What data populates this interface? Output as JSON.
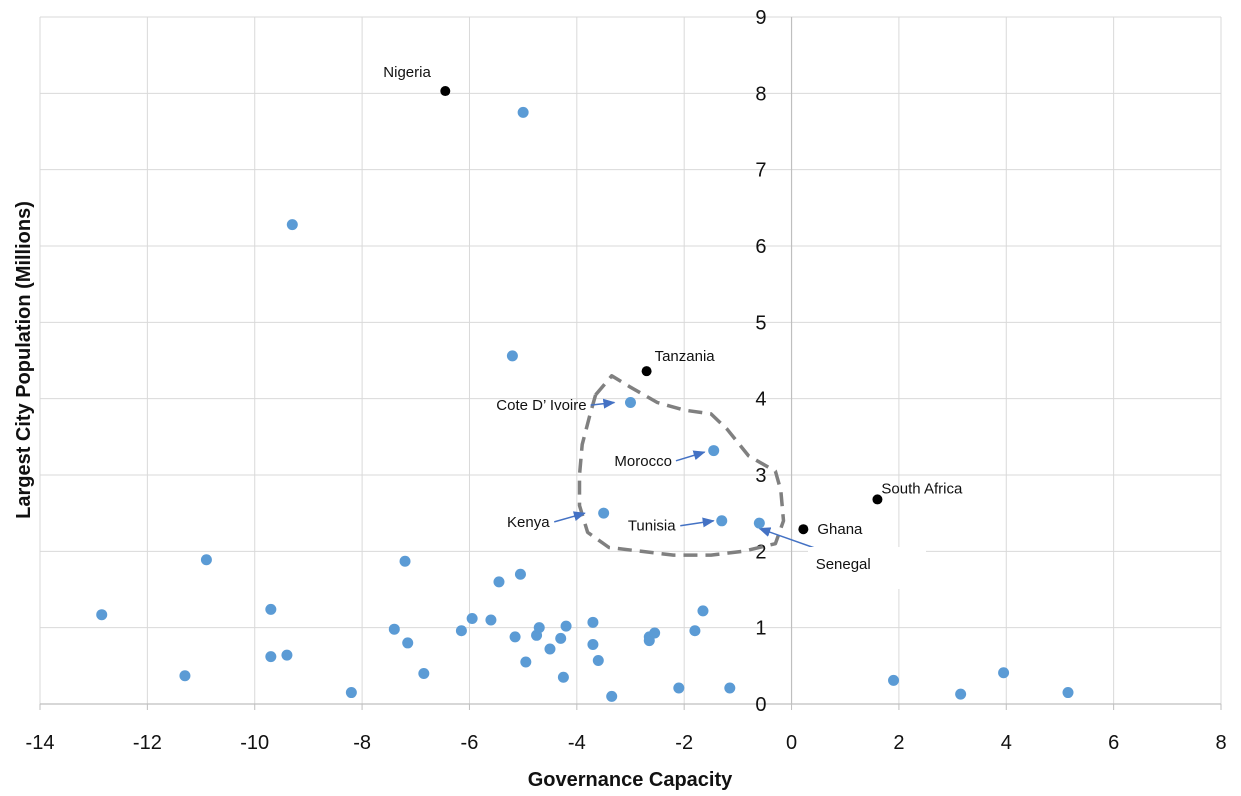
{
  "chart_data": {
    "type": "scatter",
    "title": "",
    "xlabel": "Governance Capacity",
    "ylabel": "Largest City Population (Millions)",
    "xlim": [
      -14,
      8
    ],
    "ylim": [
      0,
      9
    ],
    "x_ticks": [
      -14,
      -12,
      -10,
      -8,
      -6,
      -4,
      -2,
      0,
      2,
      4,
      6,
      8
    ],
    "y_ticks": [
      0,
      1,
      2,
      3,
      4,
      5,
      6,
      7,
      8,
      9
    ],
    "grid": true,
    "colors": {
      "points": "#5b9bd5",
      "highlight": "#000000",
      "arrow": "#4472c4",
      "cluster": "#808080"
    },
    "series": [
      {
        "points": [
          [
            -12.85,
            1.17
          ],
          [
            -11.3,
            0.37
          ],
          [
            -10.9,
            1.89
          ],
          [
            -9.7,
            1.24
          ],
          [
            -9.7,
            0.62
          ],
          [
            -9.4,
            0.64
          ],
          [
            -9.3,
            6.28
          ],
          [
            -8.2,
            0.15
          ],
          [
            -7.4,
            0.98
          ],
          [
            -7.2,
            1.87
          ],
          [
            -7.15,
            0.8
          ],
          [
            -6.85,
            0.4
          ],
          [
            -6.15,
            0.96
          ],
          [
            -5.95,
            1.12
          ],
          [
            -5.6,
            1.1
          ],
          [
            -5.45,
            1.6
          ],
          [
            -5.2,
            4.56
          ],
          [
            -5.15,
            0.88
          ],
          [
            -5.05,
            1.7
          ],
          [
            -5.0,
            7.75
          ],
          [
            -4.95,
            0.55
          ],
          [
            -4.75,
            0.9
          ],
          [
            -4.7,
            1.0
          ],
          [
            -4.5,
            0.72
          ],
          [
            -4.3,
            0.86
          ],
          [
            -4.25,
            0.35
          ],
          [
            -4.2,
            1.02
          ],
          [
            -3.7,
            1.07
          ],
          [
            -3.7,
            0.78
          ],
          [
            -3.6,
            0.57
          ],
          [
            -3.5,
            2.5
          ],
          [
            -3.35,
            0.1
          ],
          [
            -3.0,
            3.95
          ],
          [
            -2.65,
            0.88
          ],
          [
            -2.65,
            0.83
          ],
          [
            -2.55,
            0.93
          ],
          [
            -2.1,
            0.21
          ],
          [
            -1.8,
            0.96
          ],
          [
            -1.65,
            1.22
          ],
          [
            -1.45,
            3.32
          ],
          [
            -1.3,
            2.4
          ],
          [
            -1.15,
            0.21
          ],
          [
            -0.6,
            2.37
          ],
          [
            1.9,
            0.31
          ],
          [
            3.15,
            0.13
          ],
          [
            3.95,
            0.41
          ],
          [
            5.15,
            0.15
          ]
        ]
      },
      {
        "points": [
          {
            "x": -6.45,
            "y": 8.03,
            "label": "Nigeria"
          },
          {
            "x": -2.7,
            "y": 4.36,
            "label": "Tanzania"
          },
          {
            "x": 1.6,
            "y": 2.68,
            "label": "South Africa"
          },
          {
            "x": 0.22,
            "y": 2.29,
            "label": "Ghana"
          }
        ]
      }
    ],
    "annotations": [
      {
        "label": "Cote D’ Ivoire",
        "text_x": -5.5,
        "text_y": 3.85,
        "target_x": -3.3,
        "target_y": 3.95
      },
      {
        "label": "Morocco",
        "text_x": -3.3,
        "text_y": 3.12,
        "target_x": -1.62,
        "target_y": 3.3
      },
      {
        "label": "Kenya",
        "text_x": -5.3,
        "text_y": 2.32,
        "target_x": -3.85,
        "target_y": 2.5
      },
      {
        "label": "Tunisia",
        "text_x": -3.05,
        "text_y": 2.27,
        "target_x": -1.45,
        "target_y": 2.4
      },
      {
        "label": "Senegal",
        "text_x": 0.45,
        "text_y": 1.77,
        "target_x": -0.6,
        "target_y": 2.3
      }
    ],
    "cluster_outline": [
      [
        -3.65,
        4.05
      ],
      [
        -3.35,
        4.3
      ],
      [
        -3.0,
        4.15
      ],
      [
        -2.5,
        3.95
      ],
      [
        -2.0,
        3.85
      ],
      [
        -1.5,
        3.8
      ],
      [
        -1.2,
        3.6
      ],
      [
        -0.8,
        3.25
      ],
      [
        -0.3,
        3.05
      ],
      [
        -0.2,
        2.8
      ],
      [
        -0.15,
        2.4
      ],
      [
        -0.3,
        2.1
      ],
      [
        -0.9,
        2.0
      ],
      [
        -1.5,
        1.95
      ],
      [
        -2.2,
        1.95
      ],
      [
        -2.8,
        2.0
      ],
      [
        -3.4,
        2.05
      ],
      [
        -3.8,
        2.25
      ],
      [
        -3.95,
        2.6
      ],
      [
        -3.95,
        3.0
      ],
      [
        -3.9,
        3.4
      ],
      [
        -3.75,
        3.8
      ],
      [
        -3.65,
        4.05
      ]
    ]
  }
}
